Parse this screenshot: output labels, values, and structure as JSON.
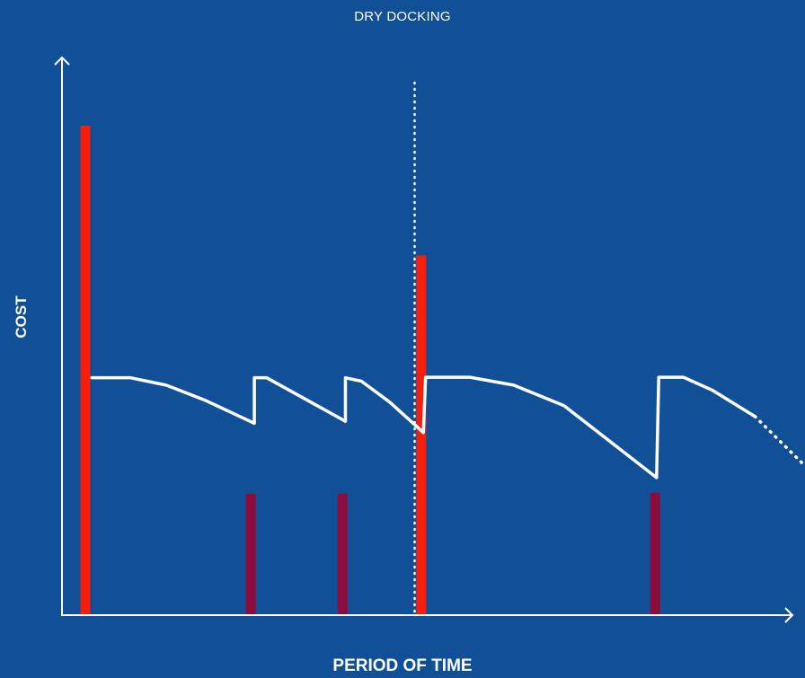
{
  "labels": {
    "top": "DRY DOCKING",
    "xlabel": "PERIOD OF TIME",
    "ylabel": "COST"
  },
  "colors": {
    "background": "#114f97",
    "axis": "#ffffff",
    "major_bar": "#f41f0c",
    "minor_bar": "#8e0c3c",
    "curve": "#ffffff"
  },
  "chart_data": {
    "type": "bar",
    "title": "",
    "xlabel": "PERIOD OF TIME",
    "ylabel": "COST",
    "xlim": [
      0,
      100
    ],
    "ylim": [
      0,
      100
    ],
    "grid": false,
    "legend": "none",
    "series": [
      {
        "values": [
          {
            "x": 3.2,
            "y": 100
          },
          {
            "x": 49.3,
            "y": 73.5
          }
        ]
      },
      {
        "values": [
          {
            "x": 25.9,
            "y": 24.8
          },
          {
            "x": 38.5,
            "y": 24.8
          },
          {
            "x": 81.4,
            "y": 25.0
          }
        ]
      },
      {
        "type": "line",
        "values": [
          {
            "x": 4.1,
            "y": 48.5
          },
          {
            "x": 9.4,
            "y": 48.5
          },
          {
            "x": 14.3,
            "y": 47.0
          },
          {
            "x": 19.5,
            "y": 44.0
          },
          {
            "x": 26.4,
            "y": 39.2
          },
          {
            "x": 26.4,
            "y": 48.5
          },
          {
            "x": 28.1,
            "y": 48.5
          },
          {
            "x": 38.9,
            "y": 39.6
          },
          {
            "x": 38.9,
            "y": 48.5
          },
          {
            "x": 41.1,
            "y": 47.8
          },
          {
            "x": 45.0,
            "y": 43.5
          },
          {
            "x": 49.6,
            "y": 37.3
          },
          {
            "x": 49.9,
            "y": 48.6
          },
          {
            "x": 56.0,
            "y": 48.6
          },
          {
            "x": 62.0,
            "y": 47.0
          },
          {
            "x": 68.9,
            "y": 42.8
          },
          {
            "x": 81.6,
            "y": 28.1
          },
          {
            "x": 81.9,
            "y": 48.6
          },
          {
            "x": 85.3,
            "y": 48.6
          },
          {
            "x": 89.2,
            "y": 46.0
          },
          {
            "x": 95.1,
            "y": 40.6
          }
        ]
      },
      {
        "type": "line",
        "values": [
          {
            "x": 95.1,
            "y": 40.6
          },
          {
            "x": 101.5,
            "y": 31.2
          }
        ]
      }
    ],
    "annotations": [
      {
        "type": "vline",
        "x": 48.4,
        "y_top": 108.8
      }
    ]
  }
}
